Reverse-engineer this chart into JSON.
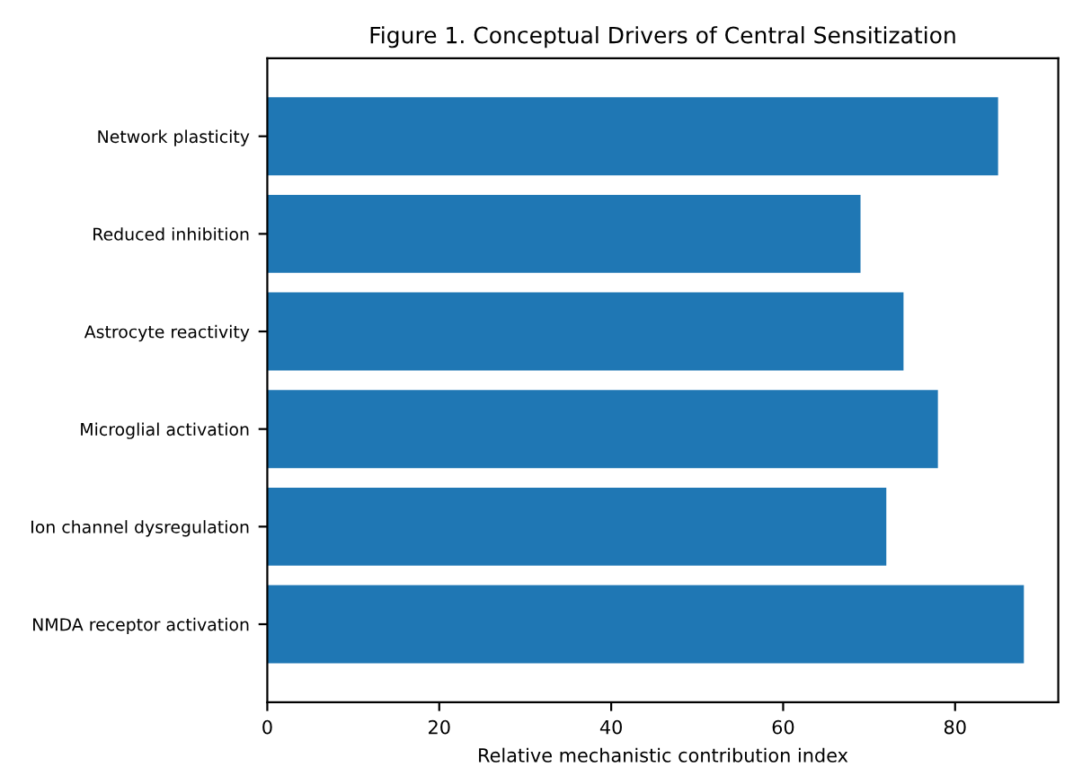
{
  "chart_data": {
    "type": "bar",
    "orientation": "horizontal",
    "title": "Figure 1. Conceptual Drivers of Central Sensitization",
    "xlabel": "Relative mechanistic contribution index",
    "categories": [
      "Network plasticity",
      "Reduced inhibition",
      "Astrocyte reactivity",
      "Microglial activation",
      "Ion channel dysregulation",
      "NMDA receptor activation"
    ],
    "values": [
      85,
      69,
      74,
      78,
      72,
      88
    ],
    "color": "#1f77b4",
    "xlim": [
      0,
      92
    ],
    "xticks": [
      0,
      20,
      40,
      60,
      80
    ],
    "grid": false,
    "legend": false
  }
}
